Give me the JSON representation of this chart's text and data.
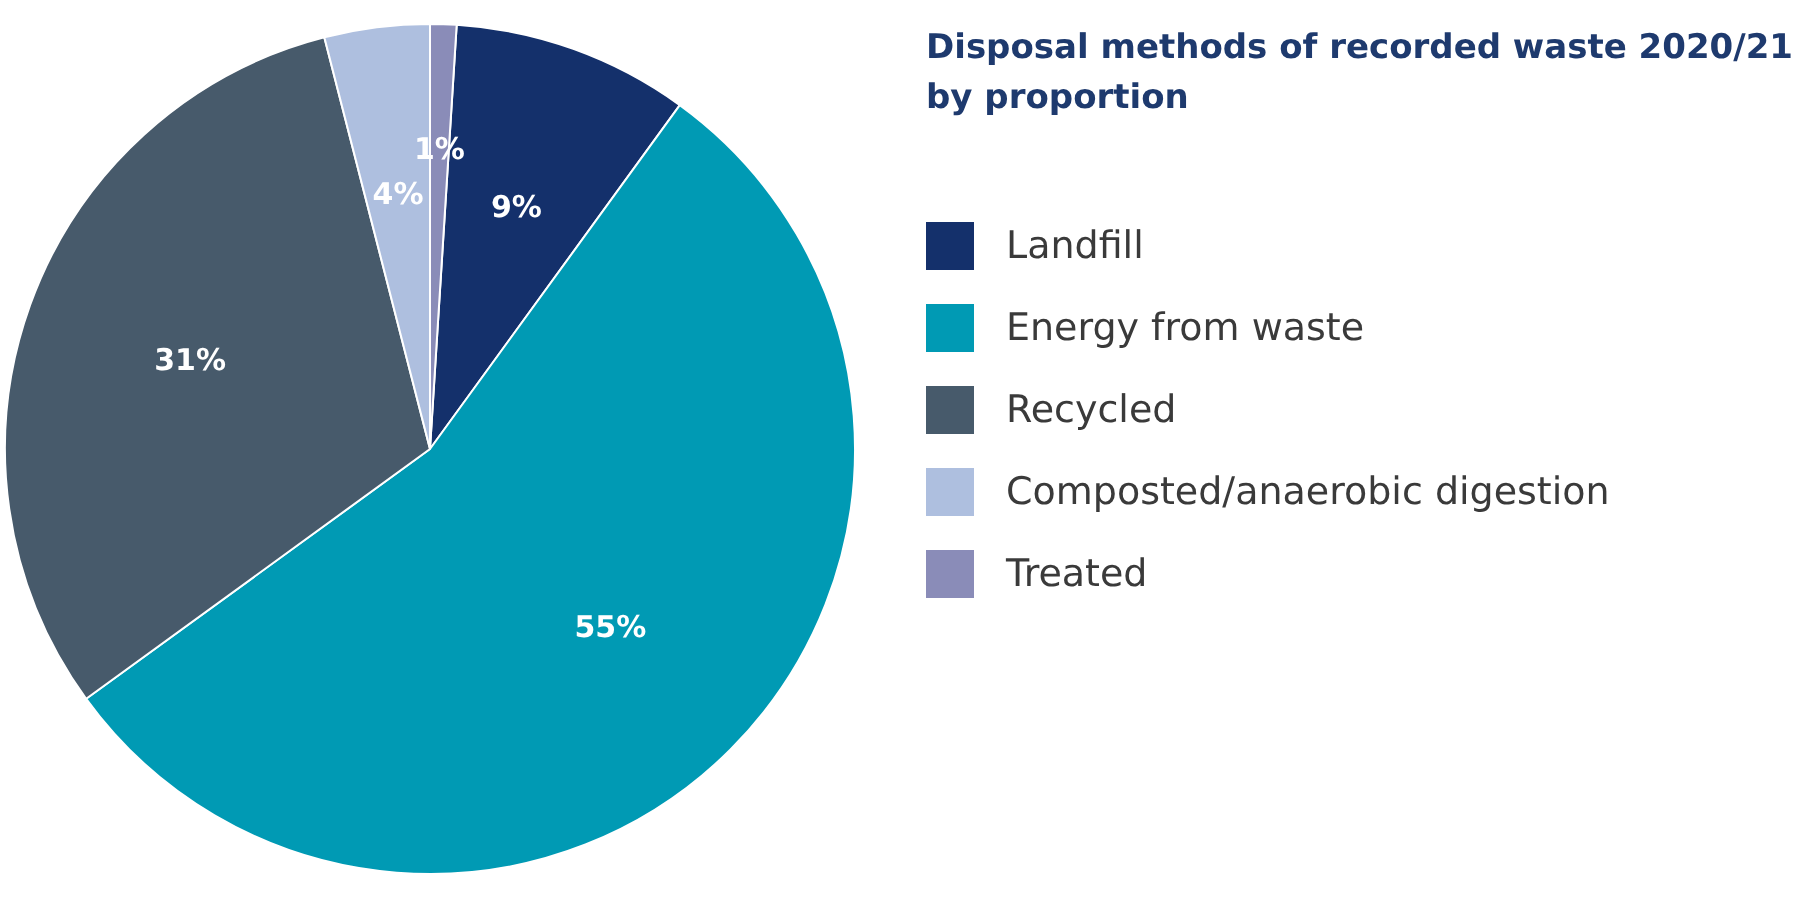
{
  "chart_data": {
    "type": "pie",
    "title": "Disposal methods of recorded waste 2020/21 by proportion",
    "categories": [
      "Landfill",
      "Energy from waste",
      "Recycled",
      "Composted/anaerobic digestion",
      "Treated"
    ],
    "values": [
      9,
      55,
      31,
      4,
      1
    ],
    "colors": [
      "#14306b",
      "#009ab4",
      "#475a6b",
      "#aebfdf",
      "#8a8cb8"
    ],
    "value_labels": [
      "9%",
      "55%",
      "31%",
      "4%",
      "1%"
    ],
    "legend": "right"
  }
}
